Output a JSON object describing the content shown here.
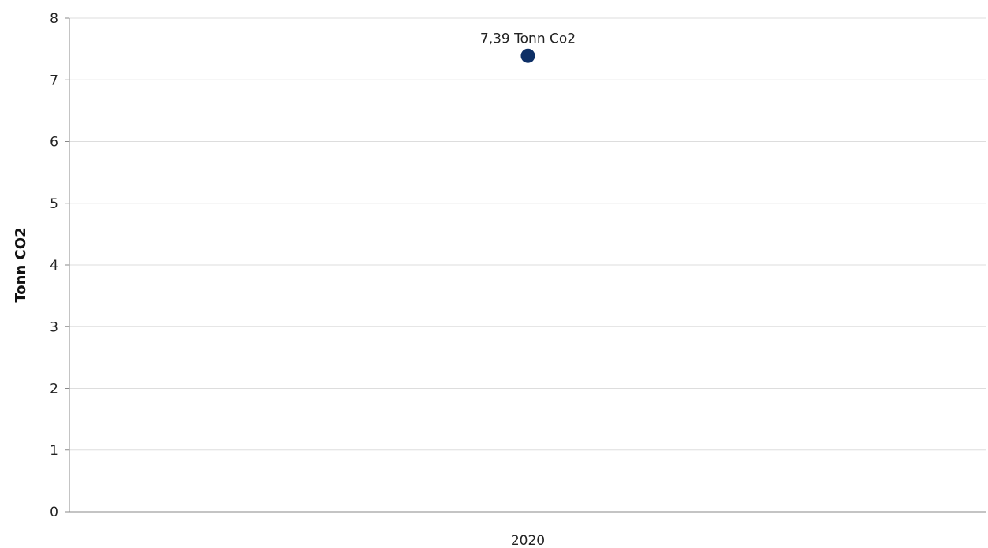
{
  "chart_data": {
    "type": "scatter",
    "title": "",
    "xlabel": "",
    "ylabel": "Tonn CO2",
    "categories": [
      "2020"
    ],
    "series": [
      {
        "values": [
          7.39
        ],
        "data_labels": [
          "7,39 Tonn Co2"
        ],
        "color": "#0d2f66"
      }
    ],
    "ylim": [
      0,
      8
    ],
    "yticks": [
      "0",
      "1",
      "2",
      "3",
      "4",
      "5",
      "6",
      "7",
      "8"
    ],
    "grid": true,
    "legend": "none",
    "colors": {
      "marker": "#0d2f66",
      "grid": "#dddddd",
      "axis": "#888888"
    }
  }
}
